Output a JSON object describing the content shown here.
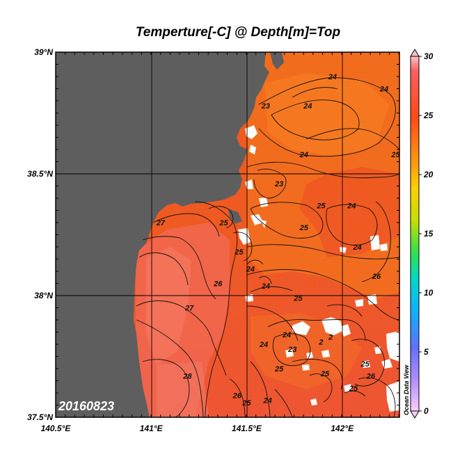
{
  "title": "Temperture[-C] @ Depth[m]=Top",
  "date_label": "20160823",
  "watermark": "Ocean Data View",
  "map": {
    "lon_range": [
      140.5,
      142.3
    ],
    "lat_range": [
      37.5,
      39.0
    ],
    "lon_ticks": [
      {
        "value": 140.5,
        "label": "140.5°E"
      },
      {
        "value": 141.0,
        "label": "141°E"
      },
      {
        "value": 141.5,
        "label": "141.5°E"
      },
      {
        "value": 142.0,
        "label": "142°E"
      }
    ],
    "lat_ticks": [
      {
        "value": 39.0,
        "label": "39°N"
      },
      {
        "value": 38.5,
        "label": "38.5°N"
      },
      {
        "value": 38.0,
        "label": "38°N"
      },
      {
        "value": 37.5,
        "label": "37.5°N"
      }
    ],
    "land_color": "#5e5e5e",
    "grid": true
  },
  "colorbar": {
    "min": 0,
    "max": 30,
    "ticks": [
      "30",
      "25",
      "20",
      "15",
      "10",
      "5",
      "0"
    ]
  },
  "contour_labels": [
    {
      "text": "24",
      "lon": 141.95,
      "lat": 38.9
    },
    {
      "text": "24",
      "lon": 142.22,
      "lat": 38.85
    },
    {
      "text": "23",
      "lon": 141.6,
      "lat": 38.78
    },
    {
      "text": "24",
      "lon": 141.82,
      "lat": 38.78
    },
    {
      "text": "24",
      "lon": 141.8,
      "lat": 38.58
    },
    {
      "text": "25",
      "lon": 142.28,
      "lat": 38.58
    },
    {
      "text": "23",
      "lon": 141.67,
      "lat": 38.46
    },
    {
      "text": "25",
      "lon": 141.89,
      "lat": 38.37
    },
    {
      "text": "24",
      "lon": 142.05,
      "lat": 38.37
    },
    {
      "text": "25",
      "lon": 141.8,
      "lat": 38.28
    },
    {
      "text": "24",
      "lon": 142.08,
      "lat": 38.2
    },
    {
      "text": "26",
      "lon": 142.18,
      "lat": 38.08
    },
    {
      "text": "27",
      "lon": 141.05,
      "lat": 38.3
    },
    {
      "text": "25",
      "lon": 141.38,
      "lat": 38.3
    },
    {
      "text": "25",
      "lon": 141.46,
      "lat": 38.18
    },
    {
      "text": "24",
      "lon": 141.52,
      "lat": 38.11
    },
    {
      "text": "26",
      "lon": 141.35,
      "lat": 38.05
    },
    {
      "text": "24",
      "lon": 141.6,
      "lat": 38.04
    },
    {
      "text": "25",
      "lon": 141.77,
      "lat": 37.99
    },
    {
      "text": "27",
      "lon": 141.2,
      "lat": 37.95
    },
    {
      "text": "24",
      "lon": 141.71,
      "lat": 37.84
    },
    {
      "text": "24",
      "lon": 141.59,
      "lat": 37.8
    },
    {
      "text": "2",
      "lon": 141.94,
      "lat": 37.83
    },
    {
      "text": "2",
      "lon": 141.89,
      "lat": 37.81
    },
    {
      "text": "23",
      "lon": 141.74,
      "lat": 37.78
    },
    {
      "text": "25",
      "lon": 141.67,
      "lat": 37.7
    },
    {
      "text": "25",
      "lon": 141.91,
      "lat": 37.68
    },
    {
      "text": "25",
      "lon": 142.12,
      "lat": 37.72
    },
    {
      "text": "26",
      "lon": 142.15,
      "lat": 37.67
    },
    {
      "text": "25",
      "lon": 142.06,
      "lat": 37.62
    },
    {
      "text": "28",
      "lon": 141.19,
      "lat": 37.67
    },
    {
      "text": "26",
      "lon": 141.45,
      "lat": 37.59
    },
    {
      "text": "25",
      "lon": 141.5,
      "lat": 37.56
    },
    {
      "text": "24",
      "lon": 141.61,
      "lat": 37.57
    }
  ]
}
